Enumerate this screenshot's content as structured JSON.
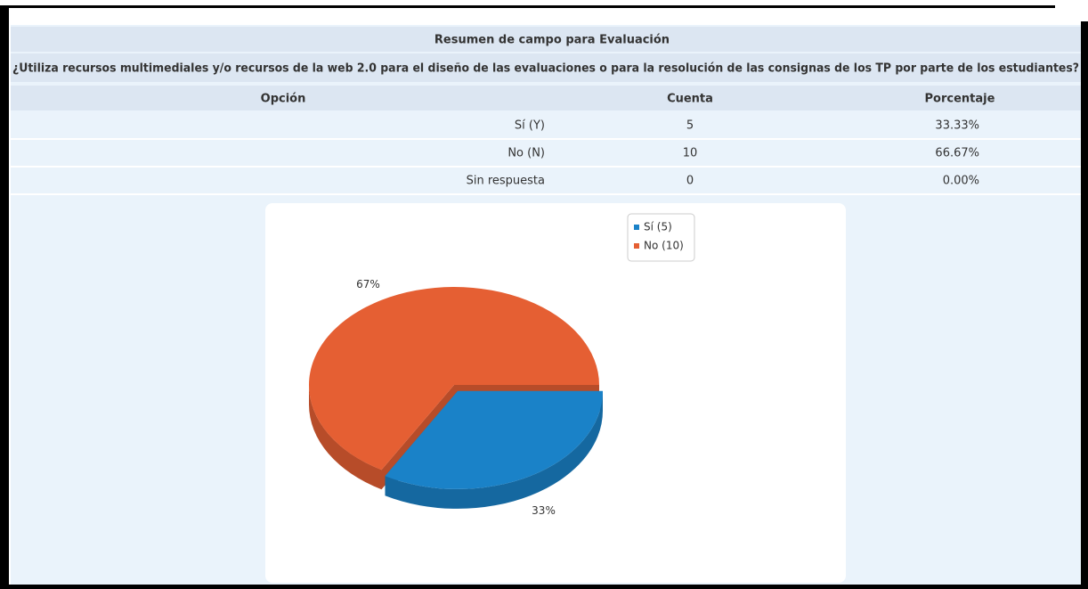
{
  "table": {
    "title": "Resumen de campo para Evaluación",
    "question": "¿Utiliza recursos multimediales y/o recursos de la web 2.0 para el diseño de las evaluaciones o para la resolución de las consignas de los TP por parte de los estudiantes?",
    "columns": [
      "Opción",
      "Cuenta",
      "Porcentaje"
    ],
    "rows": [
      [
        "Sí (Y)",
        "5",
        "33.33%"
      ],
      [
        "No (N)",
        "10",
        "66.67%"
      ],
      [
        "Sin respuesta",
        "0",
        "0.00%"
      ]
    ]
  },
  "chart_data": {
    "type": "pie",
    "categories": [
      "Sí (5)",
      "No (10)"
    ],
    "values": [
      33.33,
      66.67
    ],
    "value_labels": [
      "33%",
      "67%"
    ],
    "colors": [
      "#1a82c8",
      "#e55f33"
    ],
    "legend": "top-right"
  }
}
